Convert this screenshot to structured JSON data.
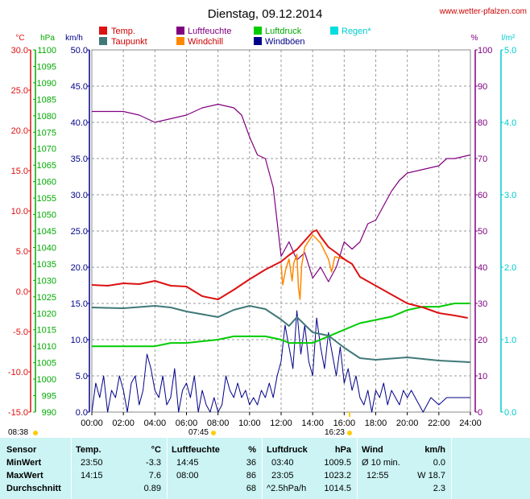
{
  "title": "Dienstag, 09.12.2014",
  "source": "www.wetter-pfalzen.com",
  "units": {
    "temp": "°C",
    "pressure": "hPa",
    "speed": "km/h",
    "humidity": "%",
    "rain": "l/m²"
  },
  "legend": [
    {
      "label": "Temp.",
      "color": "#dd1111"
    },
    {
      "label": "Luftfeuchte",
      "color": "#800080"
    },
    {
      "label": "Luftdruck",
      "color": "#00cc00"
    },
    {
      "label": "Regen*",
      "color": "#00dddd"
    },
    {
      "label": "Taupunkt",
      "color": "#407878"
    },
    {
      "label": "Windchill",
      "color": "#ff8800"
    },
    {
      "label": "Windböen",
      "color": "#000088"
    }
  ],
  "colors": {
    "temp": "#dd1111",
    "humidity": "#800080",
    "pressure": "#00cc00",
    "rain": "#00cccc",
    "dewpoint": "#407878",
    "windchill": "#ff8800",
    "gust": "#000088"
  },
  "sun": {
    "rise": "07:45",
    "set": "16:23",
    "dawn": "08:38"
  },
  "chart_data": {
    "type": "line",
    "title": "Dienstag, 09.12.2014",
    "x_ticks": [
      "00:00",
      "02:00",
      "04:00",
      "06:00",
      "08:00",
      "10:00",
      "12:00",
      "14:00",
      "16:00",
      "18:00",
      "20:00",
      "22:00",
      "24:00"
    ],
    "axes": {
      "temp": {
        "label": "°C",
        "range": [
          -15,
          30
        ],
        "ticks": [
          "30.0",
          "25.0",
          "20.0",
          "15.0",
          "10.0",
          "5.0",
          "0.0",
          "-5.0",
          "-10.0",
          "-15.0"
        ]
      },
      "pressure": {
        "label": "hPa",
        "range": [
          990,
          1100
        ],
        "ticks": [
          "1100",
          "1095",
          "1090",
          "1085",
          "1080",
          "1075",
          "1070",
          "1065",
          "1060",
          "1055",
          "1050",
          "1045",
          "1040",
          "1035",
          "1030",
          "1025",
          "1020",
          "1015",
          "1010",
          "1005",
          "1000",
          "995",
          "990"
        ]
      },
      "speed": {
        "label": "km/h",
        "range": [
          0,
          50
        ],
        "ticks": [
          "50.0",
          "45.0",
          "40.0",
          "35.0",
          "30.0",
          "25.0",
          "20.0",
          "15.0",
          "10.0",
          "5.0",
          "0.0"
        ]
      },
      "humidity": {
        "label": "%",
        "range": [
          0,
          100
        ],
        "ticks": [
          "100",
          "90",
          "80",
          "70",
          "60",
          "50",
          "40",
          "30",
          "20",
          "10",
          "0"
        ]
      },
      "rain": {
        "label": "l/m²",
        "range": [
          0,
          5
        ],
        "ticks": [
          "5.0",
          "4.0",
          "3.0",
          "2.0",
          "1.0",
          "0.0"
        ]
      }
    },
    "series": [
      {
        "name": "Temp.",
        "axis": "temp",
        "points": [
          [
            0,
            0.8
          ],
          [
            1,
            0.7
          ],
          [
            2,
            1.0
          ],
          [
            3,
            0.9
          ],
          [
            4,
            1.3
          ],
          [
            5,
            0.7
          ],
          [
            6,
            0.6
          ],
          [
            7,
            -0.6
          ],
          [
            8,
            -1.0
          ],
          [
            9,
            0.2
          ],
          [
            10,
            1.5
          ],
          [
            11,
            2.7
          ],
          [
            12,
            3.7
          ],
          [
            12.5,
            4.5
          ],
          [
            13,
            5.2
          ],
          [
            13.5,
            6.3
          ],
          [
            14,
            7.4
          ],
          [
            14.25,
            7.6
          ],
          [
            14.5,
            6.8
          ],
          [
            15,
            5.5
          ],
          [
            15.5,
            4.8
          ],
          [
            16,
            4.0
          ],
          [
            16.5,
            3.4
          ],
          [
            17,
            1.8
          ],
          [
            18,
            0.7
          ],
          [
            19,
            -0.4
          ],
          [
            20,
            -1.5
          ],
          [
            21,
            -2.0
          ],
          [
            22,
            -2.7
          ],
          [
            23,
            -3.0
          ],
          [
            23.83,
            -3.3
          ]
        ]
      },
      {
        "name": "Taupunkt",
        "axis": "temp",
        "points": [
          [
            0,
            -2.0
          ],
          [
            2,
            -2.1
          ],
          [
            4,
            -1.8
          ],
          [
            5,
            -2.0
          ],
          [
            6,
            -2.5
          ],
          [
            8,
            -3.2
          ],
          [
            9,
            -2.3
          ],
          [
            10,
            -1.8
          ],
          [
            11,
            -2.2
          ],
          [
            12,
            -3.5
          ],
          [
            12.5,
            -4.3
          ],
          [
            13,
            -3.2
          ],
          [
            14,
            -5.1
          ],
          [
            15,
            -5.5
          ],
          [
            16,
            -7.0
          ],
          [
            17,
            -8.3
          ],
          [
            18,
            -8.5
          ],
          [
            20,
            -8.2
          ],
          [
            22,
            -8.6
          ],
          [
            24,
            -8.8
          ]
        ]
      },
      {
        "name": "Windchill",
        "axis": "temp",
        "points": [
          [
            12,
            3.3
          ],
          [
            12.1,
            0.8
          ],
          [
            12.3,
            2.8
          ],
          [
            12.5,
            4.0
          ],
          [
            12.7,
            1.3
          ],
          [
            12.8,
            3.5
          ],
          [
            13,
            4.6
          ],
          [
            13.1,
            0.5
          ],
          [
            13.2,
            -1.0
          ],
          [
            13.3,
            3.2
          ],
          [
            13.5,
            5.5
          ],
          [
            14,
            7.0
          ],
          [
            14.5,
            6.0
          ],
          [
            15,
            4.0
          ],
          [
            15.2,
            2.4
          ],
          [
            15.4,
            4.3
          ],
          [
            16,
            4.0
          ]
        ]
      },
      {
        "name": "Luftfeuchte",
        "axis": "humidity",
        "points": [
          [
            0,
            83
          ],
          [
            2,
            83
          ],
          [
            3,
            82
          ],
          [
            4,
            80
          ],
          [
            5,
            81
          ],
          [
            6,
            82
          ],
          [
            7,
            84
          ],
          [
            8,
            85
          ],
          [
            9,
            84
          ],
          [
            9.5,
            82
          ],
          [
            10,
            76
          ],
          [
            10.5,
            71
          ],
          [
            11,
            70
          ],
          [
            11.5,
            62
          ],
          [
            12,
            43
          ],
          [
            12.5,
            47
          ],
          [
            13,
            42
          ],
          [
            13.5,
            44
          ],
          [
            14,
            37
          ],
          [
            14.5,
            40
          ],
          [
            15,
            36
          ],
          [
            15.5,
            40
          ],
          [
            16,
            47
          ],
          [
            16.5,
            45
          ],
          [
            17,
            47
          ],
          [
            17.5,
            52
          ],
          [
            18,
            53
          ],
          [
            18.5,
            57
          ],
          [
            19,
            61
          ],
          [
            19.5,
            64
          ],
          [
            20,
            66
          ],
          [
            21,
            67
          ],
          [
            22,
            68
          ],
          [
            22.5,
            70
          ],
          [
            23,
            70
          ],
          [
            24,
            71
          ]
        ]
      },
      {
        "name": "Luftdruck",
        "axis": "pressure",
        "points": [
          [
            0,
            1010
          ],
          [
            2,
            1010
          ],
          [
            4,
            1010
          ],
          [
            5,
            1011
          ],
          [
            6,
            1011
          ],
          [
            8,
            1012
          ],
          [
            9,
            1013
          ],
          [
            10,
            1013
          ],
          [
            11,
            1013
          ],
          [
            12,
            1012
          ],
          [
            12.5,
            1011
          ],
          [
            13,
            1011
          ],
          [
            14,
            1011
          ],
          [
            15,
            1013
          ],
          [
            16,
            1015
          ],
          [
            17,
            1017
          ],
          [
            18,
            1018
          ],
          [
            19,
            1019
          ],
          [
            20,
            1021
          ],
          [
            21,
            1022
          ],
          [
            22,
            1022
          ],
          [
            23,
            1023
          ],
          [
            24,
            1023
          ]
        ]
      },
      {
        "name": "Windböen",
        "axis": "speed",
        "points": [
          [
            0,
            0
          ],
          [
            0.25,
            4
          ],
          [
            0.5,
            2
          ],
          [
            0.75,
            5
          ],
          [
            1,
            0
          ],
          [
            1.25,
            3
          ],
          [
            1.5,
            2
          ],
          [
            1.75,
            5
          ],
          [
            2,
            3
          ],
          [
            2.25,
            0
          ],
          [
            2.5,
            4
          ],
          [
            2.75,
            5
          ],
          [
            3,
            1
          ],
          [
            3.25,
            3
          ],
          [
            3.5,
            8
          ],
          [
            3.75,
            6
          ],
          [
            4,
            3
          ],
          [
            4.25,
            2
          ],
          [
            4.5,
            5
          ],
          [
            4.75,
            1
          ],
          [
            5,
            2
          ],
          [
            5.25,
            6
          ],
          [
            5.5,
            0
          ],
          [
            5.75,
            3
          ],
          [
            6,
            4
          ],
          [
            6.25,
            2
          ],
          [
            6.5,
            5
          ],
          [
            6.75,
            0
          ],
          [
            7,
            3
          ],
          [
            7.25,
            1
          ],
          [
            7.5,
            0
          ],
          [
            7.75,
            2
          ],
          [
            8,
            0
          ],
          [
            8.25,
            1
          ],
          [
            8.5,
            5
          ],
          [
            8.75,
            3
          ],
          [
            9,
            2
          ],
          [
            9.25,
            4
          ],
          [
            9.5,
            2
          ],
          [
            9.75,
            3
          ],
          [
            10,
            1
          ],
          [
            10.25,
            2
          ],
          [
            10.5,
            1
          ],
          [
            10.75,
            3
          ],
          [
            11,
            2
          ],
          [
            11.25,
            4
          ],
          [
            11.5,
            2
          ],
          [
            11.75,
            5
          ],
          [
            12,
            7
          ],
          [
            12.25,
            12
          ],
          [
            12.5,
            9
          ],
          [
            12.75,
            6
          ],
          [
            13,
            14
          ],
          [
            13.25,
            8
          ],
          [
            13.5,
            12
          ],
          [
            13.75,
            7
          ],
          [
            14,
            5
          ],
          [
            14.25,
            13
          ],
          [
            14.5,
            9
          ],
          [
            14.75,
            6
          ],
          [
            15,
            11
          ],
          [
            15.25,
            8
          ],
          [
            15.5,
            5
          ],
          [
            15.75,
            9
          ],
          [
            16,
            4
          ],
          [
            16.25,
            6
          ],
          [
            16.5,
            3
          ],
          [
            16.75,
            5
          ],
          [
            17,
            2
          ],
          [
            17.25,
            1
          ],
          [
            17.5,
            3
          ],
          [
            17.75,
            0
          ],
          [
            18,
            3
          ],
          [
            18.25,
            2
          ],
          [
            18.5,
            4
          ],
          [
            18.75,
            1
          ],
          [
            19,
            3
          ],
          [
            19.25,
            2
          ],
          [
            19.5,
            1
          ],
          [
            19.75,
            3
          ],
          [
            20,
            2
          ],
          [
            20.25,
            3
          ],
          [
            20.5,
            2
          ],
          [
            21,
            0
          ],
          [
            21.5,
            2
          ],
          [
            22,
            1
          ],
          [
            22.5,
            2
          ],
          [
            23,
            2
          ],
          [
            23.5,
            2
          ],
          [
            24,
            2
          ]
        ]
      }
    ]
  },
  "stats": {
    "headers": {
      "sensor": "Sensor",
      "temp": "Temp.",
      "temp_unit": "°C",
      "hum": "Luftfeuchte",
      "hum_unit": "%",
      "press": "Luftdruck",
      "press_unit": "hPa",
      "wind": "Wind",
      "wind_unit": "km/h"
    },
    "rows": [
      {
        "label": "MinWert",
        "temp_time": "23:50",
        "temp_val": "-3.3",
        "hum_time": "14:45",
        "hum_val": "36",
        "press_time": "03:40",
        "press_val": "1009.5",
        "wind_desc": "Ø 10 min.",
        "wind_val": "0.0"
      },
      {
        "label": "MaxWert",
        "temp_time": "14:15",
        "temp_val": "7.6",
        "hum_time": "08:00",
        "hum_val": "86",
        "press_time": "23:05",
        "press_val": "1023.2",
        "wind_desc": "12:55",
        "wind_val": "W 18.7"
      },
      {
        "label": "Durchschnitt",
        "temp_time": "",
        "temp_val": "0.89",
        "hum_time": "",
        "hum_val": "68",
        "press_time": "^2.5hPa/h",
        "press_val": "1014.5",
        "wind_desc": "",
        "wind_val": "2.3"
      }
    ]
  }
}
